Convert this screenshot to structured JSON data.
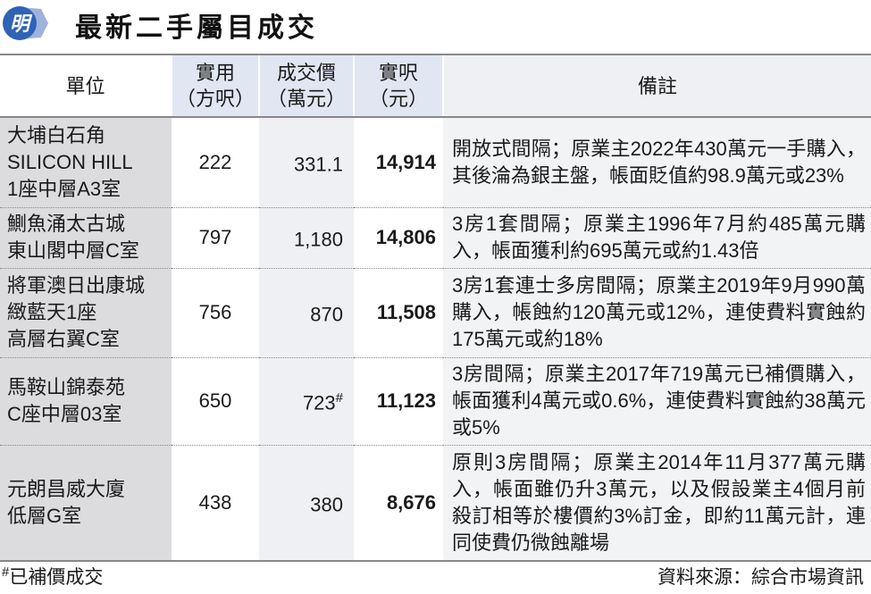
{
  "header": {
    "title": "最新二手屬目成交",
    "logo_text": "明",
    "brand_color": "#2e63b6"
  },
  "table": {
    "columns": [
      {
        "line1": "單位",
        "line2": ""
      },
      {
        "line1": "實用",
        "line2": "（方呎）"
      },
      {
        "line1": "成交價",
        "line2": "（萬元）"
      },
      {
        "line1": "實呎",
        "line2": "（元）"
      },
      {
        "line1": "備註",
        "line2": ""
      }
    ],
    "rows": [
      {
        "unit": [
          "大埔白石角",
          "SILICON HILL",
          "1座中層A3室"
        ],
        "area": "222",
        "price": "331.1",
        "price_mark": "",
        "psf": "14,914",
        "note": "開放式間隔；原業主2022年430萬元一手購入，其後淪為銀主盤，帳面貶值約98.9萬元或23%"
      },
      {
        "unit": [
          "鰂魚涌太古城",
          "東山閣中層C室"
        ],
        "area": "797",
        "price": "1,180",
        "price_mark": "",
        "psf": "14,806",
        "note": "3房1套間隔；原業主1996年7月約485萬元購入，帳面獲利約695萬元或約1.43倍"
      },
      {
        "unit": [
          "將軍澳日出康城",
          "緻藍天1座",
          "高層右翼C室"
        ],
        "area": "756",
        "price": "870",
        "price_mark": "",
        "psf": "11,508",
        "note": "3房1套連士多房間隔；原業主2019年9月990萬購入，帳蝕約120萬元或12%，連使費料實蝕約175萬元或約18%"
      },
      {
        "unit": [
          "馬鞍山錦泰苑",
          "C座中層03室"
        ],
        "area": "650",
        "price": "723",
        "price_mark": "#",
        "psf": "11,123",
        "note": "3房間隔；原業主2017年719萬元已補價購入，帳面獲利4萬元或0.6%，連使費料實蝕約38萬元或5%"
      },
      {
        "unit": [
          "元朗昌威大廈",
          "低層G室"
        ],
        "area": "438",
        "price": "380",
        "price_mark": "",
        "psf": "8,676",
        "note": "原則3房間隔；原業主2014年11月377萬元購入，帳面雖仍升3萬元，以及假設業主4個月前殺訂相等於樓價約3%訂金，即約11萬元計，連同使費仍微蝕離場"
      }
    ]
  },
  "footer": {
    "footnote_mark": "#",
    "footnote": "已補價成交",
    "source": "資料來源：綜合市場資訊"
  }
}
